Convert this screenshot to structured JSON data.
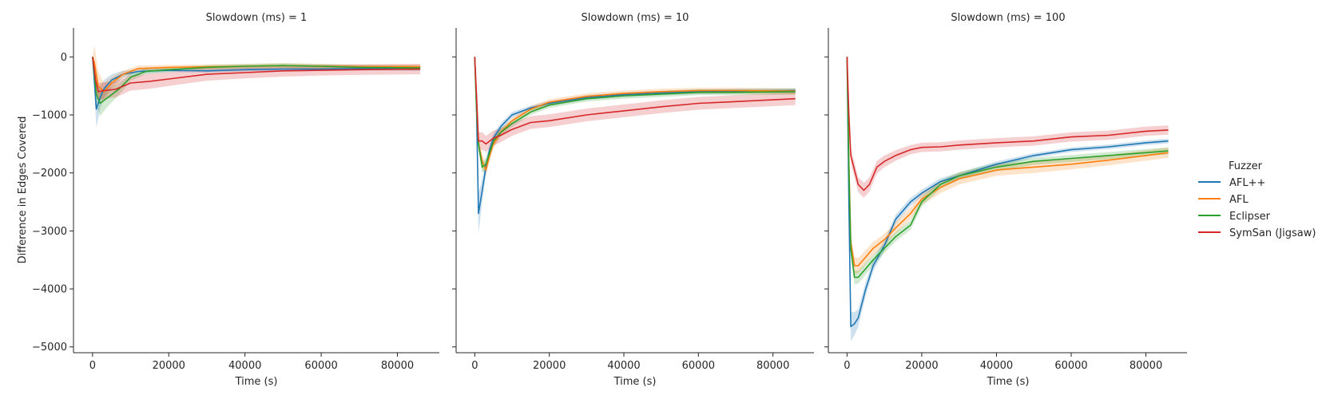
{
  "chart_data": {
    "type": "line",
    "ylabel": "Difference in Edges Covered",
    "xlabel": "Time (s)",
    "xlim": [
      -5000,
      91000
    ],
    "ylim": [
      -5100,
      500
    ],
    "xticks": [
      0,
      20000,
      40000,
      60000,
      80000
    ],
    "xtick_labels": [
      "0",
      "20000",
      "40000",
      "60000",
      "80000"
    ],
    "yticks": [
      0,
      -1000,
      -2000,
      -3000,
      -4000,
      -5000
    ],
    "ytick_labels": [
      "0",
      "−1000",
      "−2000",
      "−3000",
      "−4000",
      "−5000"
    ],
    "grid": false,
    "legend": {
      "title": "Fuzzer",
      "placement": "right",
      "entries": [
        "AFL++",
        "AFL",
        "Eclipser",
        "SymSan (Jigsaw)"
      ]
    },
    "panels": [
      {
        "title": "Slowdown (ms) = 1",
        "series": [
          {
            "name": "AFL++",
            "color": "#1f77b4",
            "x": [
              0,
              1000,
              2000,
              3000,
              5000,
              8000,
              12000,
              20000,
              30000,
              40000,
              50000,
              60000,
              70000,
              86000
            ],
            "y": [
              0,
              -900,
              -700,
              -550,
              -400,
              -300,
              -250,
              -230,
              -240,
              -220,
              -210,
              -210,
              -200,
              -210
            ],
            "band": [
              0,
              320,
              200,
              150,
              100,
              60,
              40,
              30,
              30,
              30,
              30,
              30,
              30,
              30
            ]
          },
          {
            "name": "AFL",
            "color": "#ff7f0e",
            "x": [
              0,
              500,
              1500,
              3000,
              5000,
              8000,
              12000,
              20000,
              30000,
              40000,
              50000,
              60000,
              70000,
              86000
            ],
            "y": [
              0,
              -100,
              -500,
              -600,
              -450,
              -300,
              -200,
              -180,
              -170,
              -160,
              -150,
              -160,
              -170,
              -170
            ],
            "band": [
              0,
              300,
              250,
              150,
              100,
              60,
              50,
              40,
              40,
              40,
              40,
              40,
              40,
              40
            ]
          },
          {
            "name": "Eclipser",
            "color": "#2ca02c",
            "x": [
              0,
              1000,
              2000,
              4000,
              7000,
              10000,
              14000,
              20000,
              30000,
              40000,
              50000,
              60000,
              70000,
              86000
            ],
            "y": [
              0,
              -650,
              -800,
              -700,
              -550,
              -350,
              -250,
              -220,
              -180,
              -160,
              -150,
              -160,
              -180,
              -190
            ],
            "band": [
              0,
              200,
              220,
              150,
              100,
              60,
              50,
              40,
              40,
              40,
              40,
              40,
              40,
              40
            ]
          },
          {
            "name": "SymSan (Jigsaw)",
            "color": "#d62728",
            "x": [
              0,
              800,
              1500,
              3000,
              6000,
              10000,
              15000,
              20000,
              30000,
              40000,
              50000,
              60000,
              70000,
              86000
            ],
            "y": [
              0,
              -400,
              -600,
              -580,
              -560,
              -450,
              -420,
              -380,
              -300,
              -270,
              -240,
              -230,
              -220,
              -210
            ],
            "band": [
              0,
              150,
              150,
              140,
              140,
              130,
              130,
              120,
              110,
              100,
              100,
              90,
              90,
              90
            ]
          }
        ]
      },
      {
        "title": "Slowdown (ms) = 10",
        "series": [
          {
            "name": "AFL++",
            "color": "#1f77b4",
            "x": [
              0,
              500,
              1000,
              2000,
              3000,
              4000,
              5000,
              7000,
              10000,
              15000,
              20000,
              30000,
              40000,
              50000,
              60000,
              70000,
              86000
            ],
            "y": [
              0,
              -1000,
              -2700,
              -2300,
              -1900,
              -1600,
              -1400,
              -1200,
              -1000,
              -880,
              -800,
              -700,
              -650,
              -620,
              -600,
              -590,
              -580
            ],
            "band": [
              0,
              200,
              350,
              200,
              150,
              100,
              80,
              60,
              50,
              40,
              40,
              40,
              40,
              40,
              40,
              40,
              40
            ]
          },
          {
            "name": "AFL",
            "color": "#ff7f0e",
            "x": [
              0,
              500,
              1000,
              2000,
              3000,
              4000,
              5000,
              7000,
              10000,
              15000,
              20000,
              30000,
              40000,
              50000,
              60000,
              70000,
              86000
            ],
            "y": [
              0,
              -900,
              -1500,
              -1800,
              -1950,
              -1700,
              -1500,
              -1300,
              -1100,
              -900,
              -780,
              -680,
              -630,
              -600,
              -580,
              -580,
              -590
            ],
            "band": [
              0,
              150,
              120,
              120,
              100,
              90,
              80,
              60,
              50,
              50,
              50,
              50,
              50,
              50,
              50,
              50,
              50
            ]
          },
          {
            "name": "Eclipser",
            "color": "#2ca02c",
            "x": [
              0,
              500,
              1000,
              2000,
              3000,
              4000,
              5000,
              7000,
              10000,
              15000,
              20000,
              30000,
              40000,
              50000,
              60000,
              70000,
              86000
            ],
            "y": [
              0,
              -900,
              -1500,
              -1900,
              -1850,
              -1650,
              -1450,
              -1300,
              -1150,
              -950,
              -830,
              -720,
              -670,
              -640,
              -610,
              -610,
              -600
            ],
            "band": [
              0,
              150,
              120,
              100,
              100,
              90,
              80,
              70,
              60,
              50,
              50,
              50,
              50,
              50,
              50,
              50,
              50
            ]
          },
          {
            "name": "SymSan (Jigsaw)",
            "color": "#d62728",
            "x": [
              0,
              500,
              1000,
              2000,
              3000,
              5000,
              7000,
              10000,
              15000,
              20000,
              30000,
              40000,
              50000,
              60000,
              70000,
              86000
            ],
            "y": [
              0,
              -700,
              -1450,
              -1450,
              -1500,
              -1400,
              -1350,
              -1250,
              -1130,
              -1100,
              -1000,
              -930,
              -860,
              -800,
              -770,
              -720
            ],
            "band": [
              0,
              150,
              150,
              150,
              140,
              130,
              120,
              110,
              110,
              110,
              110,
              110,
              110,
              110,
              110,
              110
            ]
          }
        ]
      },
      {
        "title": "Slowdown (ms) = 100",
        "series": [
          {
            "name": "AFL++",
            "color": "#1f77b4",
            "x": [
              0,
              500,
              1000,
              2000,
              3000,
              5000,
              7000,
              10000,
              13000,
              17000,
              20000,
              25000,
              30000,
              40000,
              50000,
              60000,
              70000,
              80000,
              86000
            ],
            "y": [
              0,
              -2500,
              -4650,
              -4600,
              -4500,
              -4000,
              -3600,
              -3250,
              -2800,
              -2500,
              -2350,
              -2150,
              -2050,
              -1850,
              -1700,
              -1600,
              -1550,
              -1480,
              -1450
            ],
            "band": [
              0,
              300,
              250,
              200,
              150,
              120,
              100,
              90,
              80,
              70,
              60,
              60,
              50,
              50,
              40,
              40,
              40,
              40,
              40
            ]
          },
          {
            "name": "AFL",
            "color": "#ff7f0e",
            "x": [
              0,
              500,
              1000,
              2000,
              3000,
              5000,
              7000,
              10000,
              13000,
              17000,
              20000,
              25000,
              30000,
              40000,
              50000,
              60000,
              70000,
              80000,
              86000
            ],
            "y": [
              0,
              -1800,
              -3200,
              -3600,
              -3600,
              -3450,
              -3300,
              -3150,
              -2950,
              -2700,
              -2450,
              -2250,
              -2100,
              -1950,
              -1900,
              -1850,
              -1780,
              -1700,
              -1650
            ],
            "band": [
              0,
              200,
              150,
              150,
              130,
              120,
              110,
              100,
              100,
              100,
              100,
              100,
              100,
              100,
              100,
              90,
              90,
              90,
              90
            ]
          },
          {
            "name": "Eclipser",
            "color": "#2ca02c",
            "x": [
              0,
              500,
              1000,
              2000,
              3000,
              5000,
              7000,
              10000,
              13000,
              17000,
              20000,
              25000,
              30000,
              40000,
              50000,
              60000,
              70000,
              80000,
              86000
            ],
            "y": [
              0,
              -1900,
              -3300,
              -3800,
              -3800,
              -3650,
              -3500,
              -3300,
              -3100,
              -2900,
              -2500,
              -2200,
              -2050,
              -1900,
              -1800,
              -1750,
              -1700,
              -1650,
              -1620
            ],
            "band": [
              0,
              200,
              150,
              120,
              110,
              100,
              90,
              80,
              80,
              80,
              80,
              70,
              70,
              70,
              60,
              60,
              60,
              60,
              60
            ]
          },
          {
            "name": "SymSan (Jigsaw)",
            "color": "#d62728",
            "x": [
              0,
              500,
              1000,
              2000,
              3000,
              4500,
              6000,
              8000,
              10000,
              13000,
              17000,
              20000,
              25000,
              30000,
              40000,
              50000,
              60000,
              70000,
              80000,
              86000
            ],
            "y": [
              0,
              -1000,
              -1700,
              -1950,
              -2200,
              -2300,
              -2200,
              -1900,
              -1800,
              -1700,
              -1600,
              -1560,
              -1550,
              -1520,
              -1480,
              -1450,
              -1380,
              -1350,
              -1280,
              -1260
            ],
            "band": [
              0,
              150,
              120,
              130,
              130,
              130,
              120,
              110,
              100,
              90,
              80,
              80,
              80,
              80,
              80,
              80,
              80,
              80,
              80,
              80
            ]
          }
        ]
      }
    ]
  }
}
